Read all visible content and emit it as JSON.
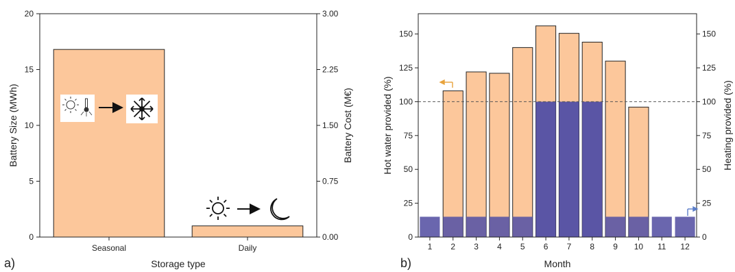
{
  "chart_data": [
    {
      "type": "bar",
      "panel": "a)",
      "categories": [
        "Seasonal",
        "Daily"
      ],
      "values": [
        16.8,
        1.0
      ],
      "xlabel": "Storage type",
      "ylabel": "Battery Size (MWh)",
      "ylim": [
        0,
        20
      ],
      "yticks": [
        0,
        5,
        10,
        15,
        20
      ],
      "y2label": "Battery Cost (M€)",
      "y2lim": [
        0,
        3
      ],
      "y2ticks": [
        "0.00",
        "0.75",
        "1.50",
        "2.25",
        "3.00"
      ],
      "bar_color": "#fcc79b",
      "grid": false,
      "annotations": [
        {
          "category": "Seasonal",
          "icons": [
            "sun-icon",
            "thermometer-icon",
            "arrow-right-icon",
            "snowflake-icon"
          ]
        },
        {
          "category": "Daily",
          "icons": [
            "sun-icon",
            "arrow-right-icon",
            "moon-icon"
          ]
        }
      ]
    },
    {
      "type": "bar",
      "panel": "b)",
      "categories": [
        "1",
        "2",
        "3",
        "4",
        "5",
        "6",
        "7",
        "8",
        "9",
        "10",
        "11",
        "12"
      ],
      "series": [
        {
          "values": [
            0,
            108,
            122,
            121,
            140,
            156,
            150.5,
            144,
            130,
            96,
            0,
            0
          ],
          "color": "#fcc79b",
          "axis": "left"
        },
        {
          "values": [
            15,
            15,
            15,
            15,
            15,
            100,
            100,
            100,
            15,
            15,
            15,
            15
          ],
          "color": "#5a55a5",
          "axis": "right"
        }
      ],
      "xlabel": "Month",
      "ylabel": "Hot water provided (%)",
      "y2label": "Heating provided (%)",
      "ylim": [
        0,
        165
      ],
      "yticks": [
        0,
        25,
        50,
        75,
        100,
        125,
        150
      ],
      "y2lim": [
        0,
        165
      ],
      "y2ticks": [
        0,
        25,
        50,
        75,
        100,
        125,
        150
      ],
      "reference_line": 100,
      "grid": false
    }
  ]
}
